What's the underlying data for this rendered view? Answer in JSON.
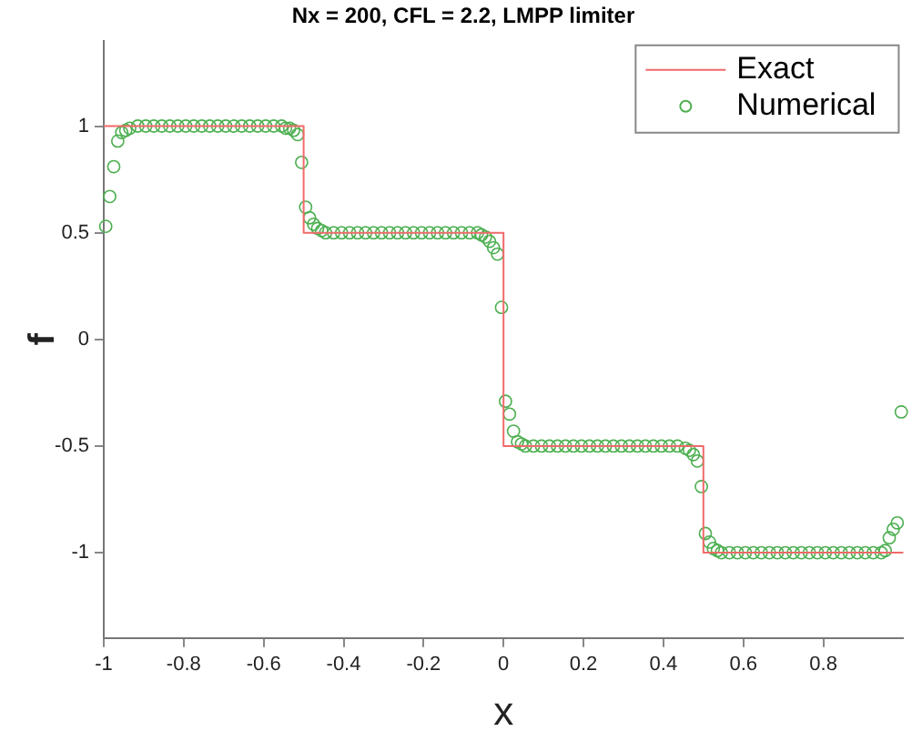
{
  "chart_data": {
    "type": "scatter",
    "title": "Nx = 200, CFL = 2.2, LMPP limiter",
    "xlabel": "x",
    "ylabel": "f",
    "xlim": [
      -1,
      1
    ],
    "ylim": [
      -1.4,
      1.4
    ],
    "xticks": [
      -1,
      -0.8,
      -0.6,
      -0.4,
      -0.2,
      0,
      0.2,
      0.4,
      0.6,
      0.8
    ],
    "yticks": [
      -1,
      -0.5,
      0,
      0.5,
      1
    ],
    "grid": false,
    "legend": "top right",
    "series": [
      {
        "name": "Exact",
        "type": "line",
        "color": "#f06a6a",
        "marker": "none",
        "x": [
          -1,
          -0.5,
          -0.5,
          0,
          0,
          0.5,
          0.5,
          1
        ],
        "values": [
          1,
          1,
          0.5,
          0.5,
          -0.5,
          -0.5,
          -1,
          -1
        ]
      },
      {
        "name": "Numerical",
        "type": "scatter",
        "color": "#4caf50",
        "marker": "circle",
        "x": [
          -0.995,
          -0.985,
          -0.975,
          -0.965,
          -0.955,
          -0.945,
          -0.935,
          -0.915,
          -0.895,
          -0.875,
          -0.855,
          -0.835,
          -0.815,
          -0.795,
          -0.775,
          -0.755,
          -0.735,
          -0.715,
          -0.695,
          -0.675,
          -0.655,
          -0.635,
          -0.615,
          -0.595,
          -0.575,
          -0.555,
          -0.545,
          -0.535,
          -0.525,
          -0.515,
          -0.505,
          -0.495,
          -0.485,
          -0.475,
          -0.465,
          -0.455,
          -0.445,
          -0.425,
          -0.405,
          -0.385,
          -0.365,
          -0.345,
          -0.325,
          -0.305,
          -0.285,
          -0.265,
          -0.245,
          -0.225,
          -0.205,
          -0.185,
          -0.165,
          -0.145,
          -0.125,
          -0.105,
          -0.085,
          -0.065,
          -0.055,
          -0.045,
          -0.035,
          -0.025,
          -0.015,
          -0.005,
          0.005,
          0.015,
          0.025,
          0.035,
          0.045,
          0.055,
          0.075,
          0.095,
          0.115,
          0.135,
          0.155,
          0.175,
          0.195,
          0.215,
          0.235,
          0.255,
          0.275,
          0.295,
          0.315,
          0.335,
          0.355,
          0.375,
          0.395,
          0.415,
          0.435,
          0.455,
          0.465,
          0.475,
          0.485,
          0.495,
          0.505,
          0.515,
          0.525,
          0.535,
          0.545,
          0.565,
          0.585,
          0.605,
          0.625,
          0.645,
          0.665,
          0.685,
          0.705,
          0.725,
          0.745,
          0.765,
          0.785,
          0.805,
          0.825,
          0.845,
          0.865,
          0.885,
          0.905,
          0.925,
          0.945,
          0.955,
          0.965,
          0.975,
          0.985,
          0.995
        ],
        "values": [
          0.53,
          0.67,
          0.81,
          0.93,
          0.97,
          0.98,
          0.99,
          1,
          1,
          1,
          1,
          1,
          1,
          1,
          1,
          1,
          1,
          1,
          1,
          1,
          1,
          1,
          1,
          1,
          1,
          1,
          0.99,
          0.99,
          0.98,
          0.96,
          0.83,
          0.62,
          0.57,
          0.54,
          0.52,
          0.51,
          0.5,
          0.5,
          0.5,
          0.5,
          0.5,
          0.5,
          0.5,
          0.5,
          0.5,
          0.5,
          0.5,
          0.5,
          0.5,
          0.5,
          0.5,
          0.5,
          0.5,
          0.5,
          0.5,
          0.5,
          0.49,
          0.48,
          0.46,
          0.43,
          0.4,
          0.15,
          -0.29,
          -0.35,
          -0.43,
          -0.48,
          -0.49,
          -0.5,
          -0.5,
          -0.5,
          -0.5,
          -0.5,
          -0.5,
          -0.5,
          -0.5,
          -0.5,
          -0.5,
          -0.5,
          -0.5,
          -0.5,
          -0.5,
          -0.5,
          -0.5,
          -0.5,
          -0.5,
          -0.5,
          -0.5,
          -0.51,
          -0.52,
          -0.54,
          -0.57,
          -0.69,
          -0.91,
          -0.95,
          -0.98,
          -0.99,
          -1,
          -1,
          -1,
          -1,
          -1,
          -1,
          -1,
          -1,
          -1,
          -1,
          -1,
          -1,
          -1,
          -1,
          -1,
          -1,
          -1,
          -1,
          -1,
          -1,
          -1,
          -0.99,
          -0.93,
          -0.89,
          -0.86,
          -0.34
        ]
      }
    ]
  }
}
